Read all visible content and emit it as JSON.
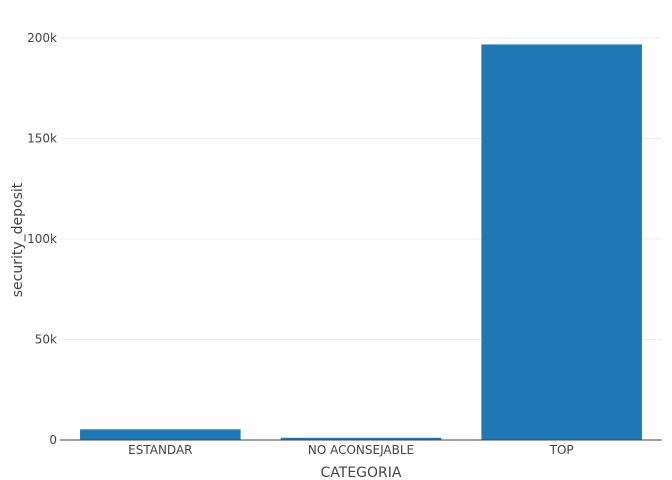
{
  "chart_data": {
    "type": "bar",
    "title": "",
    "xlabel": "CATEGORIA",
    "ylabel": "security_deposit",
    "categories": [
      "ESTANDAR",
      "NO ACONSEJABLE",
      "TOP"
    ],
    "values": [
      5300,
      1100,
      196800
    ],
    "ylim": [
      0,
      210000
    ],
    "yticks": [
      0,
      50000,
      100000,
      150000,
      200000
    ],
    "ytick_labels": [
      "0",
      "50k",
      "100k",
      "150k",
      "200k"
    ],
    "bar_color": "#1f77b4",
    "grid": true,
    "legend": "none"
  }
}
